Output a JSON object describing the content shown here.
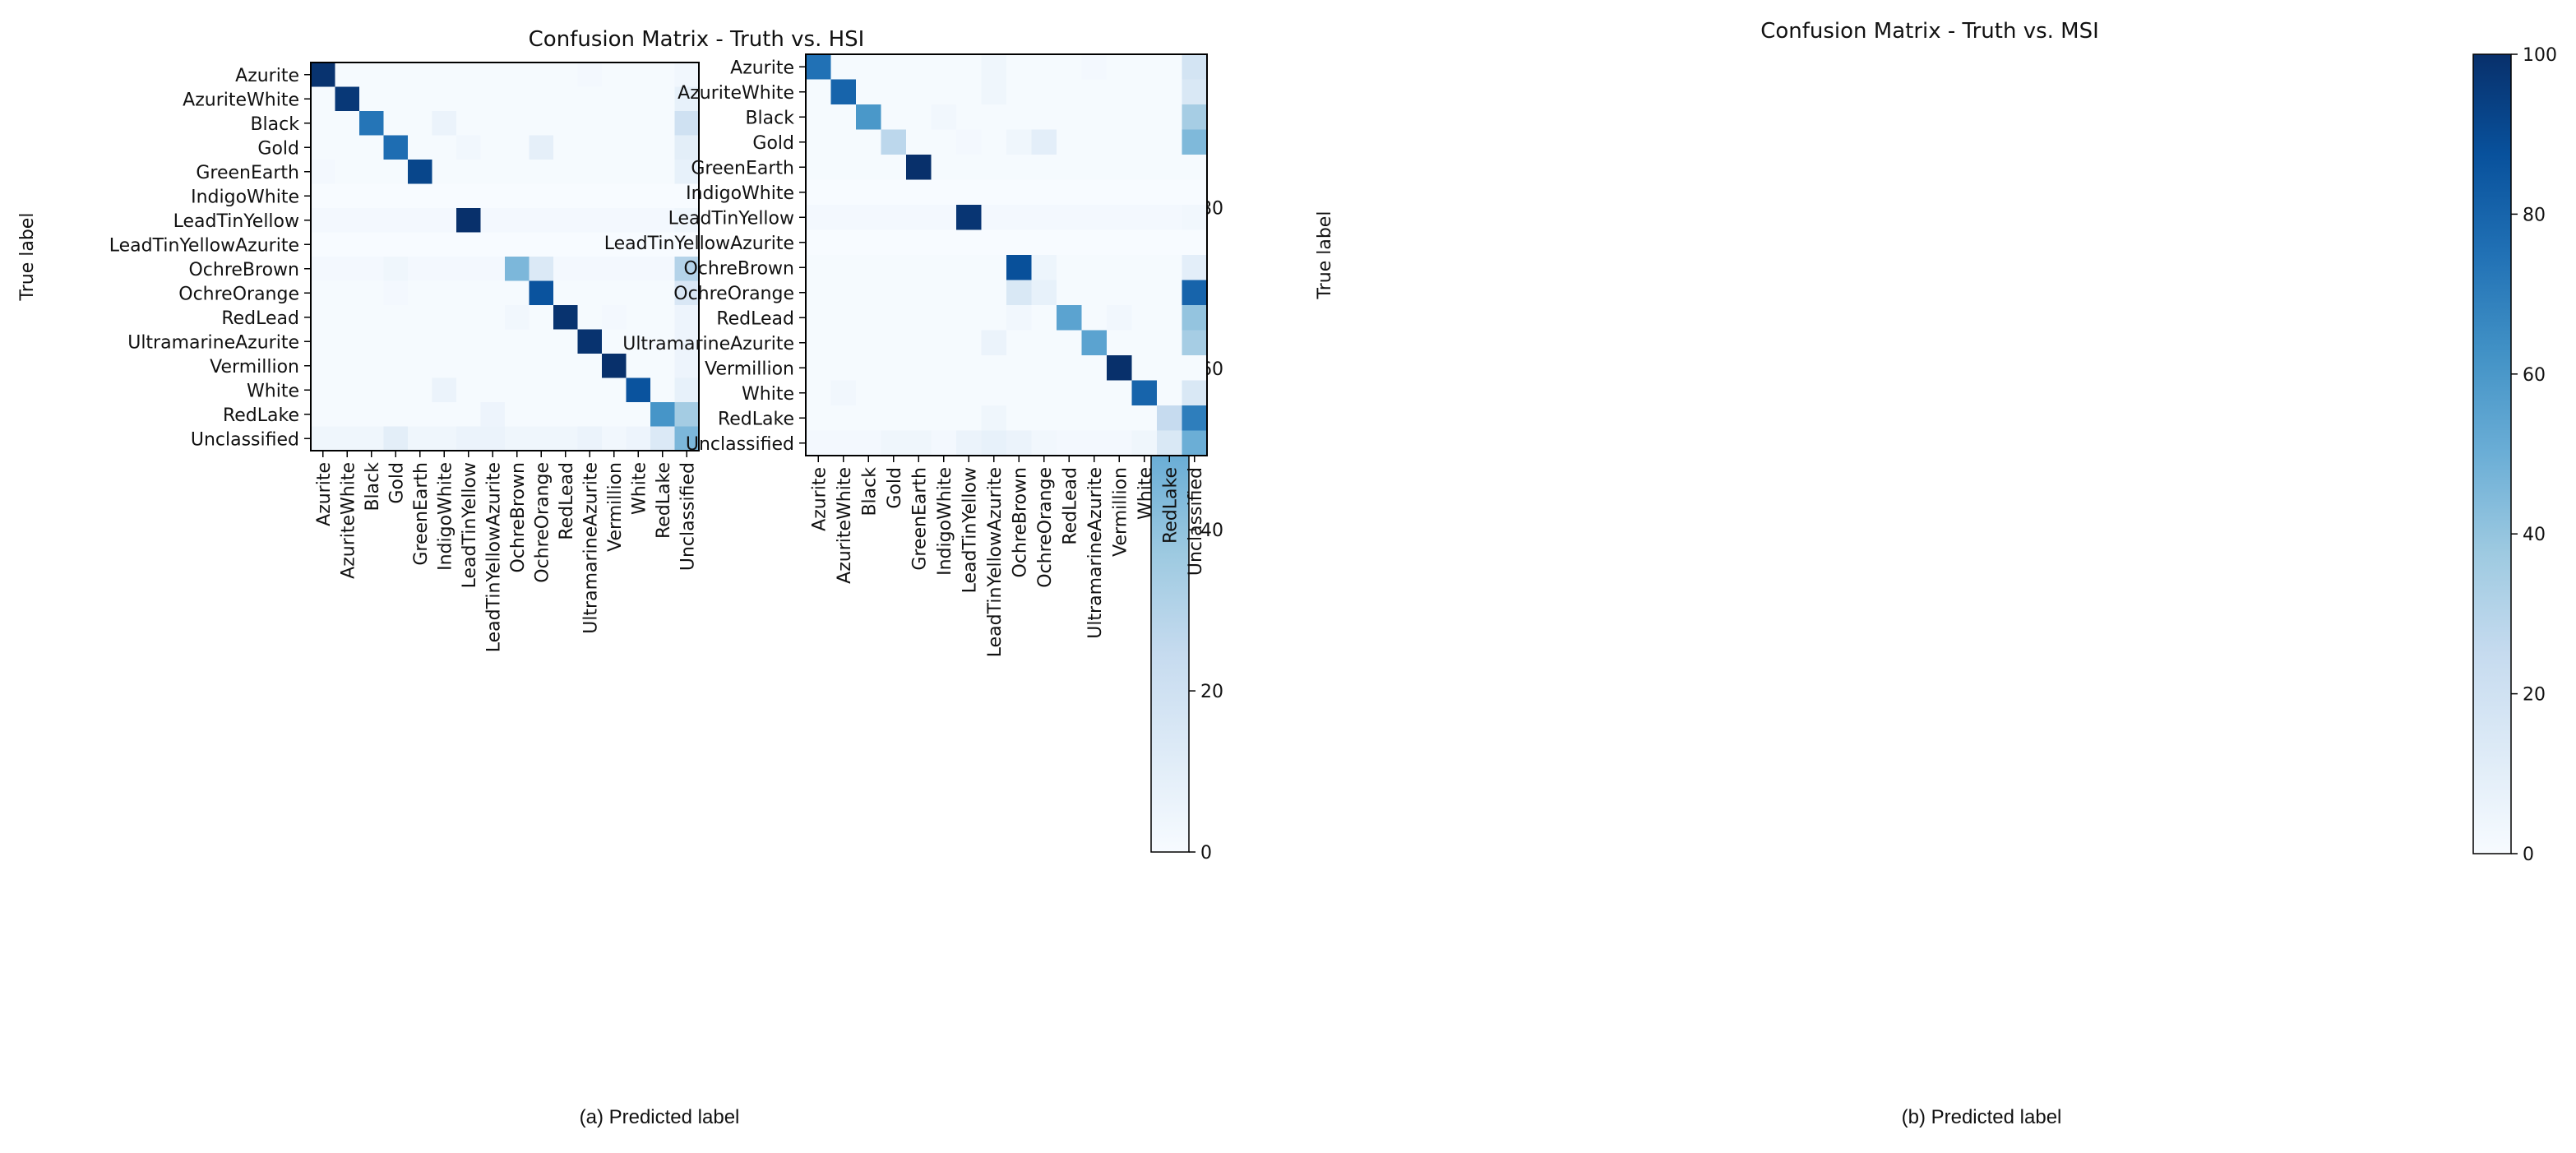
{
  "chart_data": [
    {
      "type": "heatmap",
      "title": "Confusion Matrix - Truth vs. HSI",
      "xlabel": "Predicted label",
      "ylabel": "True label",
      "caption_prefix": "(a)",
      "categories": [
        "Azurite",
        "AzuriteWhite",
        "Black",
        "Gold",
        "GreenEarth",
        "IndigoWhite",
        "LeadTinYellow",
        "LeadTinYellowAzurite",
        "OchreBrown",
        "OchreOrange",
        "RedLead",
        "UltramarineAzurite",
        "Vermillion",
        "White",
        "RedLake",
        "Unclassified"
      ],
      "colorbar": {
        "min": 0,
        "max": 98,
        "ticks": [
          0,
          20,
          40,
          60,
          80
        ]
      },
      "matrix": [
        [
          97,
          1,
          1,
          1,
          1,
          1,
          1,
          1,
          1,
          1,
          1,
          2,
          1,
          1,
          1,
          3
        ],
        [
          1,
          95,
          1,
          1,
          1,
          1,
          1,
          1,
          1,
          1,
          1,
          1,
          1,
          1,
          1,
          8
        ],
        [
          1,
          1,
          72,
          1,
          1,
          6,
          1,
          1,
          1,
          1,
          1,
          1,
          1,
          1,
          1,
          20
        ],
        [
          1,
          1,
          1,
          75,
          1,
          1,
          3,
          1,
          1,
          9,
          1,
          1,
          1,
          1,
          1,
          10
        ],
        [
          2,
          1,
          1,
          1,
          90,
          1,
          1,
          1,
          1,
          1,
          1,
          1,
          1,
          1,
          1,
          8
        ],
        [
          0,
          0,
          0,
          0,
          0,
          0,
          0,
          0,
          0,
          0,
          0,
          0,
          0,
          0,
          0,
          0
        ],
        [
          2,
          2,
          2,
          2,
          2,
          2,
          98,
          2,
          2,
          2,
          2,
          2,
          2,
          2,
          2,
          4
        ],
        [
          0,
          0,
          0,
          0,
          0,
          0,
          0,
          0,
          0,
          0,
          0,
          0,
          0,
          0,
          0,
          0
        ],
        [
          2,
          2,
          2,
          4,
          2,
          2,
          2,
          2,
          45,
          14,
          2,
          2,
          2,
          2,
          2,
          30
        ],
        [
          1,
          1,
          1,
          2,
          1,
          1,
          1,
          1,
          1,
          85,
          1,
          1,
          1,
          1,
          1,
          15
        ],
        [
          1,
          1,
          1,
          1,
          1,
          1,
          1,
          1,
          3,
          1,
          97,
          1,
          2,
          1,
          1,
          5
        ],
        [
          1,
          1,
          1,
          1,
          1,
          1,
          1,
          1,
          1,
          1,
          1,
          97,
          1,
          1,
          1,
          5
        ],
        [
          1,
          1,
          1,
          1,
          1,
          1,
          1,
          1,
          1,
          1,
          1,
          1,
          98,
          1,
          1,
          5
        ],
        [
          1,
          1,
          1,
          1,
          1,
          6,
          1,
          1,
          1,
          1,
          1,
          1,
          1,
          85,
          1,
          8
        ],
        [
          1,
          1,
          1,
          1,
          1,
          1,
          1,
          5,
          1,
          1,
          1,
          1,
          1,
          1,
          60,
          35
        ],
        [
          4,
          4,
          4,
          10,
          4,
          4,
          6,
          6,
          4,
          4,
          4,
          6,
          3,
          5,
          14,
          45
        ]
      ]
    },
    {
      "type": "heatmap",
      "title": "Confusion Matrix - Truth vs. MSI",
      "xlabel": "Predicted label",
      "ylabel": "True label",
      "caption_prefix": "(b)",
      "categories": [
        "Azurite",
        "AzuriteWhite",
        "Black",
        "Gold",
        "GreenEarth",
        "IndigoWhite",
        "LeadTinYellow",
        "LeadTinYellowAzurite",
        "OchreBrown",
        "OchreOrange",
        "RedLead",
        "UltramarineAzurite",
        "Vermillion",
        "White",
        "RedLake",
        "Unclassified"
      ],
      "colorbar": {
        "min": 0,
        "max": 100,
        "ticks": [
          0,
          20,
          40,
          60,
          80,
          100
        ]
      },
      "matrix": [
        [
          75,
          1,
          1,
          1,
          1,
          1,
          1,
          4,
          1,
          1,
          1,
          2,
          1,
          1,
          1,
          18
        ],
        [
          1,
          80,
          1,
          1,
          1,
          1,
          1,
          4,
          1,
          1,
          1,
          1,
          1,
          1,
          1,
          15
        ],
        [
          1,
          1,
          60,
          1,
          1,
          3,
          1,
          1,
          1,
          1,
          1,
          1,
          1,
          1,
          1,
          35
        ],
        [
          1,
          1,
          1,
          28,
          1,
          1,
          2,
          1,
          4,
          10,
          1,
          1,
          1,
          1,
          1,
          45
        ],
        [
          1,
          1,
          1,
          1,
          100,
          1,
          1,
          1,
          1,
          1,
          1,
          1,
          1,
          1,
          1,
          1
        ],
        [
          0,
          0,
          0,
          0,
          0,
          0,
          0,
          0,
          0,
          0,
          0,
          0,
          0,
          0,
          0,
          0
        ],
        [
          2,
          2,
          2,
          2,
          2,
          2,
          98,
          2,
          2,
          2,
          2,
          2,
          2,
          2,
          2,
          3
        ],
        [
          0,
          0,
          0,
          0,
          0,
          0,
          0,
          0,
          0,
          0,
          0,
          0,
          0,
          0,
          0,
          0
        ],
        [
          1,
          1,
          1,
          1,
          1,
          1,
          1,
          1,
          88,
          5,
          1,
          1,
          1,
          1,
          1,
          10
        ],
        [
          1,
          1,
          1,
          1,
          1,
          1,
          1,
          1,
          15,
          8,
          1,
          1,
          1,
          1,
          1,
          80
        ],
        [
          1,
          1,
          1,
          1,
          1,
          1,
          1,
          1,
          3,
          1,
          55,
          1,
          3,
          1,
          1,
          40
        ],
        [
          1,
          1,
          1,
          1,
          1,
          1,
          1,
          6,
          1,
          1,
          1,
          55,
          1,
          1,
          1,
          35
        ],
        [
          1,
          1,
          1,
          1,
          1,
          1,
          1,
          1,
          1,
          1,
          1,
          1,
          100,
          1,
          1,
          1
        ],
        [
          1,
          3,
          1,
          1,
          1,
          1,
          1,
          1,
          1,
          1,
          1,
          1,
          1,
          80,
          1,
          15
        ],
        [
          1,
          1,
          1,
          1,
          1,
          1,
          1,
          4,
          1,
          1,
          1,
          1,
          1,
          1,
          25,
          70
        ],
        [
          2,
          2,
          2,
          4,
          4,
          2,
          6,
          8,
          6,
          3,
          2,
          2,
          2,
          4,
          15,
          50
        ]
      ]
    }
  ],
  "captions": [
    {
      "label": "(a)  Predicted label"
    },
    {
      "label": "(b)  Predicted label"
    }
  ]
}
